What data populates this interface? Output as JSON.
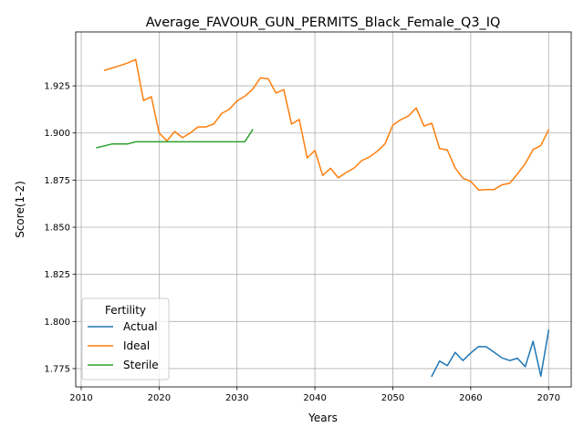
{
  "chart_data": {
    "type": "line",
    "title": "Average_FAVOUR_GUN_PERMITS_Black_Female_Q3_IQ",
    "xlabel": "Years",
    "ylabel": "Score(1-2)",
    "xlim": [
      2009.3,
      2072.9
    ],
    "ylim": [
      1.7653,
      1.9536
    ],
    "xticks": [
      2010,
      2020,
      2030,
      2040,
      2050,
      2060,
      2070
    ],
    "xtick_labels": [
      "2010",
      "2020",
      "2030",
      "2040",
      "2050",
      "2060",
      "2070"
    ],
    "yticks": [
      1.775,
      1.8,
      1.825,
      1.85,
      1.875,
      1.9,
      1.925
    ],
    "ytick_labels": [
      "1.775",
      "1.800",
      "1.825",
      "1.850",
      "1.875",
      "1.900",
      "1.925"
    ],
    "grid": true,
    "legend": {
      "title": "Fertility",
      "position": "lower-left"
    },
    "series": [
      {
        "name": "Actual",
        "color": "#1f77b4",
        "x": [
          2055,
          2056,
          2057,
          2058,
          2059,
          2060,
          2061,
          2062,
          2063,
          2064,
          2065,
          2066,
          2067,
          2068,
          2069,
          2070
        ],
        "y": [
          1.771,
          1.779,
          1.7766,
          1.7836,
          1.7793,
          1.7833,
          1.7867,
          1.7866,
          1.7837,
          1.7807,
          1.7793,
          1.7805,
          1.776,
          1.7895,
          1.771,
          1.7953
        ]
      },
      {
        "name": "Ideal",
        "color": "#ff7f0e",
        "x": [
          2013,
          2014,
          2015,
          2016,
          2017,
          2018,
          2019,
          2020,
          2021,
          2022,
          2023,
          2024,
          2025,
          2026,
          2027,
          2028,
          2029,
          2030,
          2031,
          2032,
          2033,
          2034,
          2035,
          2036,
          2037,
          2038,
          2039,
          2040,
          2041,
          2042,
          2043,
          2044,
          2045,
          2046,
          2047,
          2048,
          2049,
          2050,
          2051,
          2052,
          2053,
          2054,
          2055,
          2056,
          2057,
          2058,
          2059,
          2060,
          2061,
          2062,
          2063,
          2064,
          2065,
          2066,
          2067,
          2068,
          2069,
          2070
        ],
        "y": [
          1.9332,
          1.9345,
          1.9358,
          1.9372,
          1.939,
          1.9172,
          1.9193,
          1.9,
          1.8958,
          1.9008,
          1.8975,
          1.9,
          1.9032,
          1.9032,
          1.9047,
          1.9103,
          1.9125,
          1.917,
          1.9195,
          1.9232,
          1.9292,
          1.9288,
          1.9212,
          1.923,
          1.9047,
          1.9072,
          1.8868,
          1.8907,
          1.8775,
          1.8813,
          1.8762,
          1.879,
          1.8813,
          1.8853,
          1.8873,
          1.8903,
          1.8942,
          1.9042,
          1.907,
          1.909,
          1.9133,
          1.9037,
          1.9052,
          1.8917,
          1.891,
          1.8815,
          1.876,
          1.8743,
          1.8697,
          1.87,
          1.87,
          1.8725,
          1.8733,
          1.8783,
          1.8837,
          1.8912,
          1.8933,
          1.9017
        ]
      },
      {
        "name": "Sterile",
        "color": "#2ca02c",
        "x": [
          2012,
          2013,
          2014,
          2015,
          2016,
          2017,
          2018,
          2019,
          2020,
          2021,
          2022,
          2023,
          2024,
          2025,
          2026,
          2027,
          2028,
          2029,
          2030,
          2031,
          2032
        ],
        "y": [
          1.8922,
          1.8932,
          1.8942,
          1.8942,
          1.8942,
          1.8953,
          1.8953,
          1.8953,
          1.8953,
          1.8953,
          1.8953,
          1.8953,
          1.8953,
          1.8953,
          1.8953,
          1.8953,
          1.8953,
          1.8953,
          1.8953,
          1.8953,
          1.9017
        ]
      }
    ]
  }
}
